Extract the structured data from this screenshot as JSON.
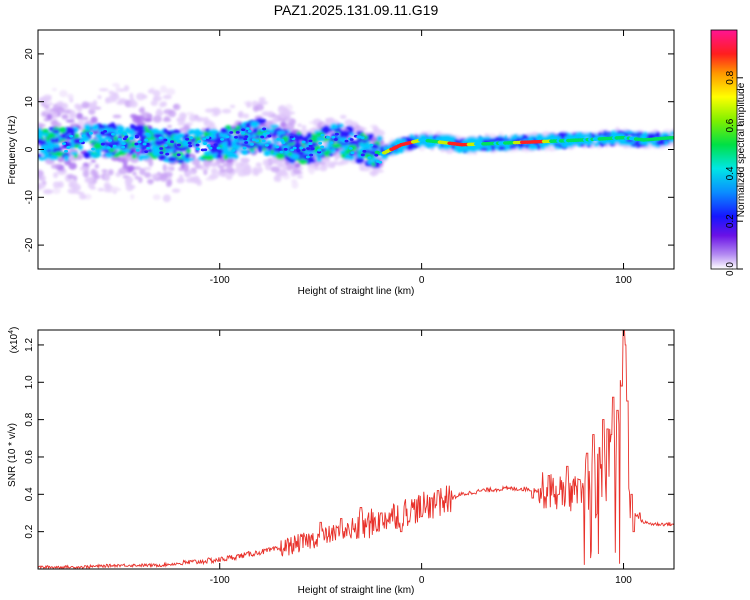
{
  "title": "PAZ1.2025.131.09.11.G19",
  "colors": {
    "snr_line": "#e8312a",
    "spectrum_low": "#e9d8fb",
    "spectrum_mid": "#6a12e6",
    "spectrum_high": "#ff1a1a"
  },
  "chart_data": [
    {
      "type": "heatmap",
      "name": "spectrogram",
      "xlabel": "Height of straight line (km)",
      "ylabel": "Frequency (Hz)",
      "xlim": [
        -190,
        125
      ],
      "ylim": [
        -25,
        25
      ],
      "x_ticks": [
        -100,
        0,
        100
      ],
      "y_ticks": [
        -20,
        -10,
        0,
        10,
        20
      ],
      "colorbar": {
        "label": "Normalized spectral amplitude",
        "range": [
          0,
          1
        ],
        "ticks": [
          0.0,
          0.2,
          0.4,
          0.6,
          0.8
        ],
        "colormap": "rainbow (purple-blue-cyan-green-yellow-red-magenta)"
      },
      "ridge_x": [
        -190,
        -150,
        -120,
        -100,
        -80,
        -60,
        -40,
        -25,
        -20,
        -10,
        0,
        20,
        50,
        80,
        100,
        110,
        125
      ],
      "ridge_freq": [
        1,
        2,
        0.5,
        1,
        3,
        0,
        2,
        0,
        -1,
        1,
        2,
        1,
        1.5,
        2,
        2.5,
        2,
        2.5
      ],
      "ridge_peak_x": [
        -10,
        18,
        55
      ],
      "grid": false
    },
    {
      "type": "line",
      "name": "snr",
      "xlabel": "Height of straight line (km)",
      "ylabel": "SNR (10 * v/v)",
      "y_multiplier": "(x10",
      "y_multiplier_exp": "4",
      "y_multiplier_close": ")",
      "xlim": [
        -190,
        125
      ],
      "ylim": [
        0.0,
        1.28
      ],
      "x_ticks": [
        -100,
        0,
        100
      ],
      "y_ticks": [
        0.2,
        0.4,
        0.6,
        0.8,
        1.0,
        1.2
      ],
      "series": [
        {
          "x": [
            -190,
            -170,
            -150,
            -130,
            -110,
            -100,
            -90,
            -80,
            -70,
            -60,
            -50,
            -40,
            -30,
            -20,
            -10,
            0,
            10,
            20,
            30,
            40,
            50,
            60,
            70,
            80,
            90,
            95,
            100,
            102,
            105,
            110,
            115,
            125
          ],
          "y": [
            0.01,
            0.01,
            0.02,
            0.02,
            0.04,
            0.05,
            0.07,
            0.09,
            0.11,
            0.14,
            0.17,
            0.2,
            0.22,
            0.27,
            0.3,
            0.33,
            0.36,
            0.4,
            0.42,
            0.43,
            0.43,
            0.42,
            0.41,
            0.4,
            0.5,
            0.7,
            0.9,
            0.5,
            0.3,
            0.25,
            0.24,
            0.24
          ],
          "spikes": [
            [
              -50,
              0.25
            ],
            [
              -40,
              0.27
            ],
            [
              -30,
              0.33
            ],
            [
              -20,
              0.3
            ],
            [
              -10,
              0.2
            ],
            [
              0,
              0.28
            ],
            [
              5,
              0.38
            ],
            [
              8,
              0.42
            ],
            [
              10,
              0.38
            ],
            [
              55,
              0.38
            ],
            [
              63,
              0.5
            ],
            [
              68,
              0.4
            ],
            [
              72,
              0.55
            ],
            [
              78,
              0.48
            ],
            [
              82,
              0.62
            ],
            [
              85,
              0.72
            ],
            [
              88,
              0.65
            ],
            [
              90,
              0.8
            ],
            [
              92,
              0.75
            ],
            [
              94,
              0.72
            ],
            [
              95,
              0.92
            ],
            [
              97,
              0.85
            ],
            [
              99,
              0.98
            ],
            [
              100,
              1.28
            ],
            [
              101,
              1.2
            ],
            [
              102,
              0.9
            ],
            [
              104,
              0.4
            ],
            [
              105,
              0.2
            ],
            [
              108,
              0.3
            ]
          ]
        }
      ],
      "grid": false
    }
  ]
}
